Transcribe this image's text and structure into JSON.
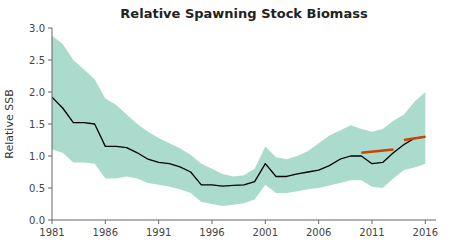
{
  "chart_data": {
    "type": "line",
    "title": "Relative Spawning Stock Biomass",
    "y_label": "Relative SSB",
    "xlim": [
      1981,
      2017
    ],
    "ylim": [
      0,
      3
    ],
    "xticks": [
      1981,
      1986,
      1991,
      1996,
      2001,
      2006,
      2011,
      2016
    ],
    "yticks": [
      {
        "value": 0,
        "label": "0.0"
      },
      0.5,
      {
        "value": 1.0,
        "label": "1.0"
      },
      1.5,
      {
        "value": 2.0,
        "label": "2.0"
      },
      2.5,
      {
        "value": 3.0,
        "label": "3.0"
      }
    ],
    "x": [
      1981,
      1982,
      1983,
      1984,
      1985,
      1986,
      1987,
      1988,
      1989,
      1990,
      1991,
      1992,
      1993,
      1994,
      1995,
      1996,
      1997,
      1998,
      1999,
      2000,
      2001,
      2002,
      2003,
      2004,
      2005,
      2006,
      2007,
      2008,
      2009,
      2010,
      2011,
      2012,
      2013,
      2014,
      2015,
      2016
    ],
    "series": [
      {
        "type": "area",
        "color": "#7ec8b0",
        "lower": [
          1.1,
          1.05,
          0.9,
          0.9,
          0.88,
          0.65,
          0.65,
          0.68,
          0.65,
          0.58,
          0.55,
          0.52,
          0.48,
          0.42,
          0.28,
          0.25,
          0.22,
          0.24,
          0.26,
          0.32,
          0.55,
          0.42,
          0.42,
          0.45,
          0.48,
          0.5,
          0.54,
          0.58,
          0.62,
          0.62,
          0.52,
          0.5,
          0.65,
          0.78,
          0.82,
          0.88
        ],
        "upper": [
          2.88,
          2.75,
          2.5,
          2.35,
          2.2,
          1.9,
          1.8,
          1.65,
          1.5,
          1.38,
          1.28,
          1.2,
          1.12,
          1.02,
          0.88,
          0.8,
          0.72,
          0.68,
          0.7,
          0.8,
          1.15,
          0.98,
          0.95,
          1.0,
          1.08,
          1.2,
          1.32,
          1.4,
          1.48,
          1.42,
          1.38,
          1.42,
          1.55,
          1.65,
          1.85,
          2.0
        ]
      },
      {
        "type": "line",
        "color": "#000000",
        "values": [
          1.92,
          1.75,
          1.52,
          1.52,
          1.5,
          1.15,
          1.15,
          1.13,
          1.05,
          0.95,
          0.9,
          0.88,
          0.83,
          0.75,
          0.55,
          0.55,
          0.53,
          0.54,
          0.55,
          0.6,
          0.88,
          0.68,
          0.68,
          0.72,
          0.75,
          0.78,
          0.85,
          0.95,
          1.0,
          1.0,
          0.88,
          0.9,
          1.05,
          1.18,
          1.28,
          1.3
        ]
      },
      {
        "type": "line",
        "color": "#cc4400",
        "x": [
          2010,
          2013
        ],
        "values": [
          1.05,
          1.1
        ]
      },
      {
        "type": "line",
        "color": "#cc4400",
        "x": [
          2014,
          2016
        ],
        "values": [
          1.25,
          1.3
        ]
      }
    ]
  }
}
